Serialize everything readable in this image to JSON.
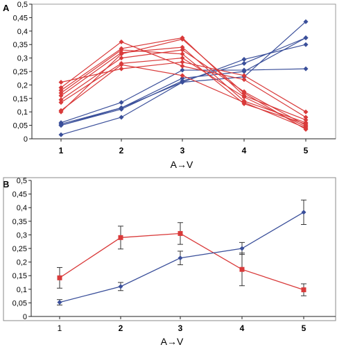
{
  "chart_data": [
    {
      "panel_label": "A",
      "type": "line",
      "xlabel": "A→V",
      "ylabel": "",
      "categories": [
        "1",
        "2",
        "3",
        "4",
        "5"
      ],
      "ylim": [
        0,
        0.5
      ],
      "yticks": [
        "0",
        "0,05",
        "0,1",
        "0,15",
        "0,2",
        "0,25",
        "0,3",
        "0,35",
        "0,4",
        "0,45",
        "0,5"
      ],
      "grid": false,
      "series_colors": {
        "blue": "#3a4f9a",
        "red": "#d93a3a"
      },
      "series": [
        {
          "color": "blue",
          "marker": "diamond",
          "values": [
            0.015,
            0.08,
            0.21,
            0.23,
            0.435
          ]
        },
        {
          "color": "blue",
          "marker": "diamond",
          "values": [
            0.05,
            0.11,
            0.215,
            0.28,
            0.375
          ]
        },
        {
          "color": "blue",
          "marker": "diamond",
          "values": [
            0.055,
            0.115,
            0.225,
            0.25,
            0.375
          ]
        },
        {
          "color": "blue",
          "marker": "diamond",
          "values": [
            0.06,
            0.135,
            0.255,
            0.255,
            0.26
          ]
        },
        {
          "color": "blue",
          "marker": "diamond",
          "values": [
            0.05,
            0.115,
            0.21,
            0.295,
            0.35
          ]
        },
        {
          "color": "red",
          "marker": "diamond",
          "values": [
            0.21,
            0.26,
            0.285,
            0.235,
            0.1
          ]
        },
        {
          "color": "red",
          "marker": "diamond",
          "values": [
            0.19,
            0.36,
            0.27,
            0.22,
            0.08
          ]
        },
        {
          "color": "red",
          "marker": "diamond",
          "values": [
            0.18,
            0.335,
            0.375,
            0.16,
            0.07
          ]
        },
        {
          "color": "red",
          "marker": "diamond",
          "values": [
            0.16,
            0.32,
            0.34,
            0.14,
            0.06
          ]
        },
        {
          "color": "red",
          "marker": "diamond",
          "values": [
            0.145,
            0.3,
            0.33,
            0.175,
            0.05
          ]
        },
        {
          "color": "red",
          "marker": "diamond",
          "values": [
            0.135,
            0.28,
            0.3,
            0.155,
            0.045
          ]
        },
        {
          "color": "red",
          "marker": "diamond",
          "values": [
            0.105,
            0.275,
            0.235,
            0.135,
            0.04
          ]
        },
        {
          "color": "red",
          "marker": "diamond",
          "values": [
            0.1,
            0.315,
            0.37,
            0.17,
            0.035
          ]
        },
        {
          "color": "red",
          "marker": "diamond",
          "values": [
            0.17,
            0.33,
            0.315,
            0.13,
            0.055
          ]
        }
      ]
    },
    {
      "panel_label": "B",
      "type": "line",
      "xlabel": "A→V",
      "ylabel": "",
      "categories": [
        "1",
        "2",
        "3",
        "4",
        "5"
      ],
      "ylim": [
        0,
        0.5
      ],
      "yticks": [
        "0",
        "0,05",
        "0,1",
        "0,15",
        "0,2",
        "0,25",
        "0,3",
        "0,35",
        "0,4",
        "0,45",
        "0,5"
      ],
      "grid": false,
      "series_colors": {
        "blue": "#3a4f9a",
        "red": "#d93a3a"
      },
      "series": [
        {
          "color": "red",
          "marker": "square",
          "values": [
            0.142,
            0.29,
            0.305,
            0.173,
            0.098
          ],
          "errors": [
            0.038,
            0.042,
            0.04,
            0.06,
            0.022
          ]
        },
        {
          "color": "blue",
          "marker": "diamond",
          "values": [
            0.052,
            0.11,
            0.215,
            0.25,
            0.383
          ],
          "errors": [
            0.01,
            0.015,
            0.025,
            0.022,
            0.045
          ]
        }
      ]
    }
  ]
}
